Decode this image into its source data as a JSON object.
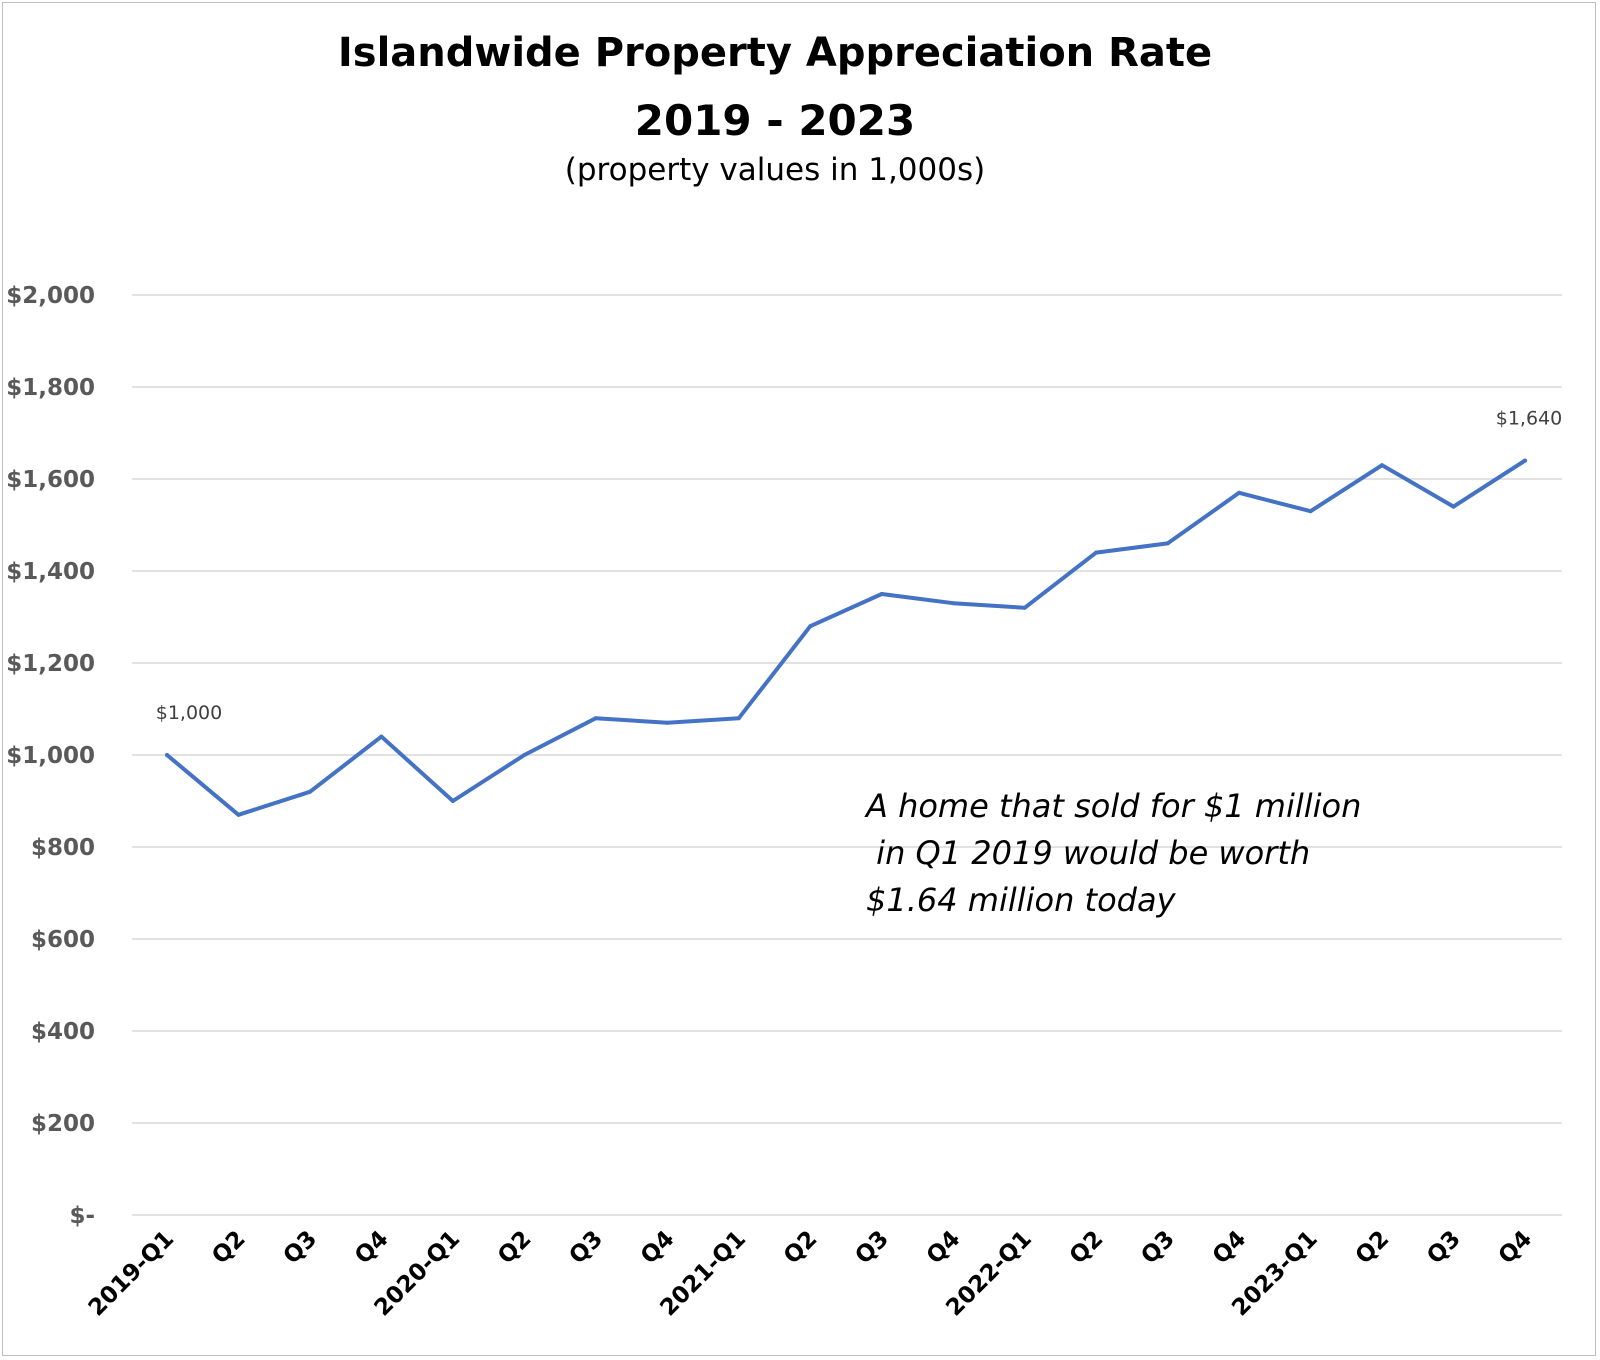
{
  "chart_data": {
    "type": "line",
    "title": "Islandwide Property Appreciation Rate",
    "title_line2": "2019 - 2023",
    "subtitle": "(property values in 1,000s)",
    "categories": [
      "2019-Q1",
      "Q2",
      "Q3",
      "Q4",
      "2020-Q1",
      "Q2",
      "Q3",
      "Q4",
      "2021-Q1",
      "Q2",
      "Q3",
      "Q4",
      "2022-Q1",
      "Q2",
      "Q3",
      "Q4",
      "2023-Q1",
      "Q2",
      "Q3",
      "Q4"
    ],
    "series": [
      {
        "values": [
          1000,
          870,
          920,
          1040,
          900,
          1000,
          1080,
          1070,
          1080,
          1280,
          1350,
          1330,
          1320,
          1440,
          1460,
          1570,
          1530,
          1630,
          1540,
          1640
        ],
        "color": "#4472C4"
      }
    ],
    "ylim": [
      0,
      2000
    ],
    "yticks": [
      0,
      200,
      400,
      600,
      800,
      1000,
      1200,
      1400,
      1600,
      1800,
      2000
    ],
    "ytick_labels": [
      "$-",
      "$200",
      "$400",
      "$600",
      "$800",
      "$1,000",
      "$1,200",
      "$1,400",
      "$1,600",
      "$1,800",
      "$2,000"
    ],
    "data_labels": [
      {
        "index": 0,
        "text": "$1,000"
      },
      {
        "index": 19,
        "text": "$1,640"
      }
    ],
    "annotation": "A home that sold for $1 million\n in Q1 2019 would be worth\n$1.64 million today",
    "grid": true,
    "legend": "none",
    "gridline_color": "#d9d9d9"
  }
}
